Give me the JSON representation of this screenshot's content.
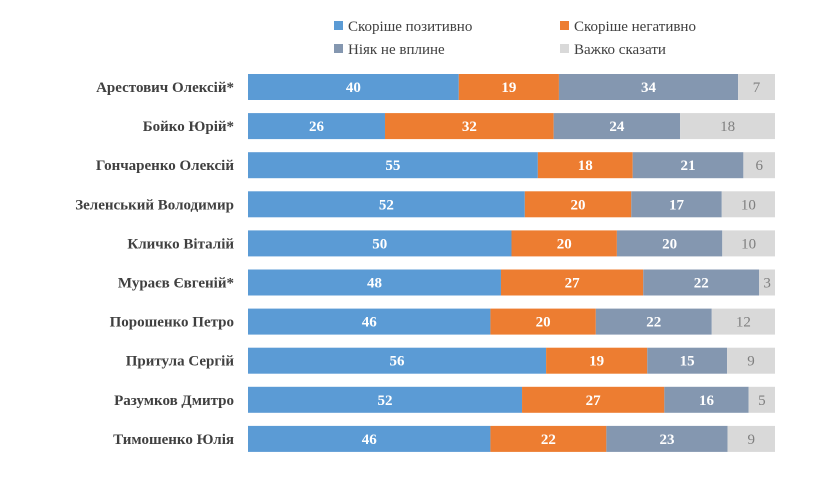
{
  "chart_data": {
    "type": "bar",
    "orientation": "horizontal",
    "stacked": true,
    "normalized": "percent",
    "categories": [
      "Арестович Олексій*",
      "Бойко Юрій*",
      "Гончаренко Олексій",
      "Зеленський Володимир",
      "Кличко Віталій",
      "Мураєв Євгеній*",
      "Порошенко Петро",
      "Притула Сергій",
      "Разумков Дмитро",
      "Тимошенко Юлія"
    ],
    "series": [
      {
        "name": "Скоріше позитивно",
        "color": "#5b9bd5",
        "label_color": "#ffffff",
        "values": [
          40,
          26,
          55,
          52,
          50,
          48,
          46,
          56,
          52,
          46
        ]
      },
      {
        "name": "Скоріше негативно",
        "color": "#ed7d31",
        "label_color": "#ffffff",
        "values": [
          19,
          32,
          18,
          20,
          20,
          27,
          20,
          19,
          27,
          22
        ]
      },
      {
        "name": "Ніяк не вплине",
        "color": "#8497b0",
        "label_color": "#ffffff",
        "values": [
          34,
          24,
          21,
          17,
          20,
          22,
          22,
          15,
          16,
          23
        ]
      },
      {
        "name": "Важко сказати",
        "color": "#d9d9d9",
        "label_color": "#7f7f7f",
        "values": [
          7,
          18,
          6,
          10,
          10,
          3,
          12,
          9,
          5,
          9
        ]
      }
    ],
    "legend_position": "top",
    "grid": false,
    "data_labels": true
  }
}
